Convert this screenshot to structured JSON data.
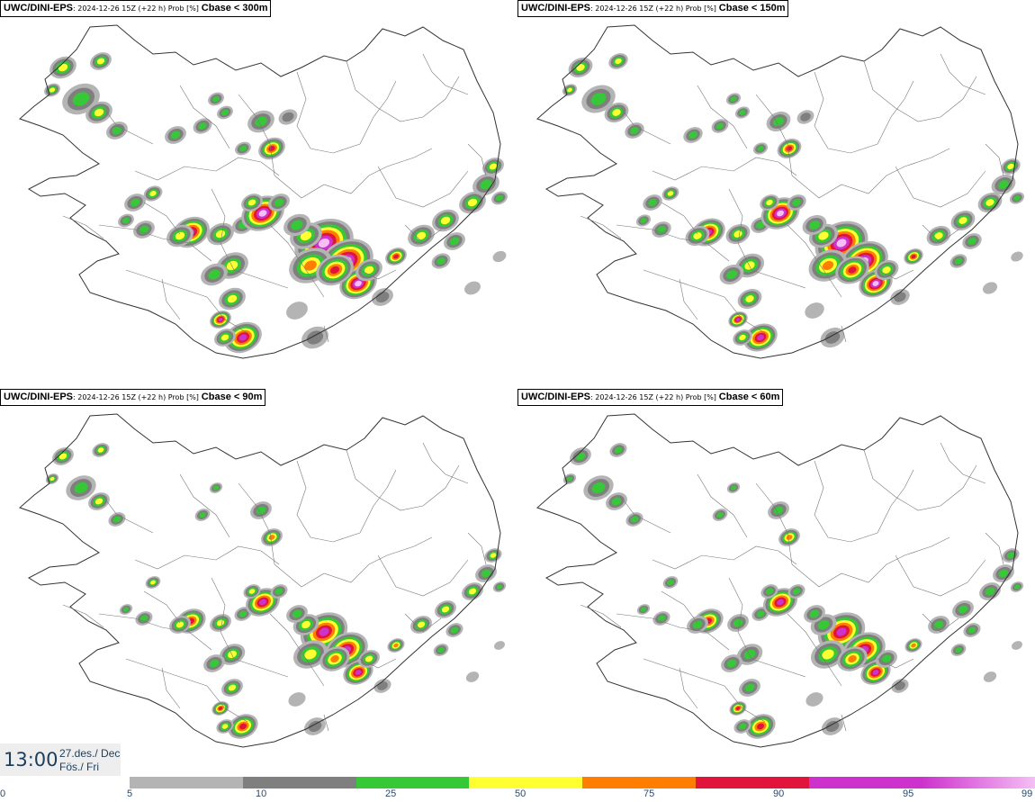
{
  "panels": [
    {
      "model": "UWC/DINI-EPS",
      "meta": ": 2024-12-26 15Z (+22 h) Prob [%]",
      "cbase": "Cbase < 300m",
      "level": 1.0
    },
    {
      "model": "UWC/DINI-EPS",
      "meta": ": 2024-12-26 15Z (+22 h) Prob [%]",
      "cbase": "Cbase < 150m",
      "level": 0.8
    },
    {
      "model": "UWC/DINI-EPS",
      "meta": ": 2024-12-26 15Z (+22 h) Prob [%]",
      "cbase": "Cbase < 90m",
      "level": 0.65
    },
    {
      "model": "UWC/DINI-EPS",
      "meta": ": 2024-12-26 15Z (+22 h) Prob [%]",
      "cbase": "Cbase < 60m",
      "level": 0.55
    }
  ],
  "valid": {
    "time": "13:00",
    "date_line1": "27.des./ Dec",
    "date_line2": "Fös./ Fri"
  },
  "legend": {
    "ticks": [
      "0",
      "5",
      "10",
      "25",
      "50",
      "75",
      "90",
      "95",
      "99"
    ],
    "colors": [
      "#b4b4b4",
      "#7f7f7f",
      "#36c836",
      "#ffff32",
      "#ff7d00",
      "#e1143c",
      "#cd32cd",
      "#f5bef5"
    ]
  }
}
